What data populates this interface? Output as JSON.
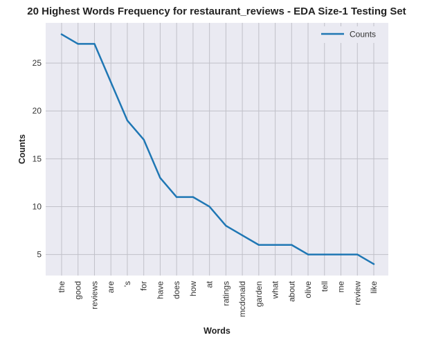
{
  "chart_data": {
    "type": "line",
    "title": "20 Highest Words Frequency for restaurant_reviews - EDA Size-1 Testing Set",
    "xlabel": "Words",
    "ylabel": "Counts",
    "categories": [
      "the",
      "good",
      "reviews",
      "are",
      "'s",
      "for",
      "have",
      "does",
      "how",
      "at",
      "ratings",
      "mcdonald",
      "garden",
      "what",
      "about",
      "olive",
      "tell",
      "me",
      "review",
      "like"
    ],
    "series": [
      {
        "name": "Counts",
        "color": "#1f77b4",
        "values": [
          28,
          27,
          27,
          23,
          19,
          17,
          13,
          11,
          11,
          10,
          8,
          7,
          6,
          6,
          6,
          5,
          5,
          5,
          5,
          4
        ]
      }
    ],
    "yticks": [
      5,
      10,
      15,
      20,
      25
    ],
    "ylim": [
      2.8,
      29.2
    ],
    "grid": true,
    "legend_position": "top-right",
    "background_color": "#eaeaf2",
    "grid_color": "#c0c0c8"
  }
}
